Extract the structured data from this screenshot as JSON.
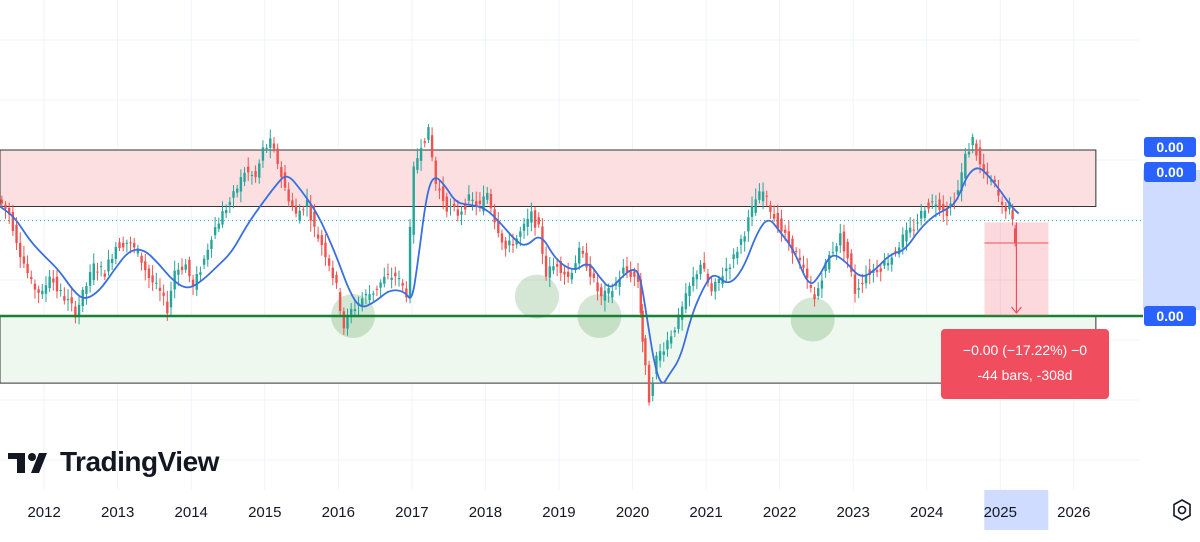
{
  "watermark": {
    "text": "TradingView"
  },
  "icons": {
    "logo": "tradingview-logo-icon",
    "settings": "settings-gear-icon"
  },
  "colors": {
    "resistance_zone": "#fbdfe1",
    "support_zone": "#eef8ee",
    "ma_line": "#3a6fe0",
    "up_candle": "#26a69a",
    "down_candle": "#ef5350",
    "support_line": "#1a7f37",
    "axis_highlight": "#cfdcff",
    "label_blue": "#2962ff",
    "measure": "#f04e5e"
  },
  "price_labels": [
    "0.00",
    "0.00",
    "0.00"
  ],
  "measure": {
    "line1": "−0.00 (−17.22%) −0",
    "line2": "-44 bars, -308d"
  },
  "chart_data": {
    "type": "line",
    "x_axis": {
      "ticks": [
        "2012",
        "2013",
        "2014",
        "2015",
        "2016",
        "2017",
        "2018",
        "2019",
        "2020",
        "2021",
        "2022",
        "2023",
        "2024",
        "2025",
        "2026"
      ],
      "highlighted_tick": "2025",
      "range": [
        2011.4,
        2026.9
      ]
    },
    "y_axis": {
      "labels": [
        "0.00",
        "0.00",
        "0.00"
      ],
      "scale": "unlabeled"
    },
    "grid": true,
    "series": [
      {
        "kind": "moving-average",
        "color": "#3a6fe0",
        "points": [
          [
            2011.4,
            0.62
          ],
          [
            2011.6,
            0.56
          ],
          [
            2011.8,
            0.43
          ],
          [
            2012.0,
            0.34
          ],
          [
            2012.2,
            0.26
          ],
          [
            2012.4,
            0.14
          ],
          [
            2012.55,
            0.09
          ],
          [
            2012.75,
            0.14
          ],
          [
            2012.95,
            0.26
          ],
          [
            2013.15,
            0.37
          ],
          [
            2013.35,
            0.38
          ],
          [
            2013.55,
            0.3
          ],
          [
            2013.75,
            0.2
          ],
          [
            2013.95,
            0.15
          ],
          [
            2014.15,
            0.2
          ],
          [
            2014.35,
            0.28
          ],
          [
            2014.55,
            0.36
          ],
          [
            2014.75,
            0.51
          ],
          [
            2014.95,
            0.63
          ],
          [
            2015.15,
            0.74
          ],
          [
            2015.3,
            0.81
          ],
          [
            2015.5,
            0.71
          ],
          [
            2015.7,
            0.59
          ],
          [
            2015.85,
            0.46
          ],
          [
            2016.0,
            0.31
          ],
          [
            2016.15,
            0.14
          ],
          [
            2016.3,
            0.04
          ],
          [
            2016.5,
            0.08
          ],
          [
            2016.7,
            0.15
          ],
          [
            2016.9,
            0.14
          ],
          [
            2017.0,
            0.08
          ],
          [
            2017.08,
            0.3
          ],
          [
            2017.2,
            0.69
          ],
          [
            2017.3,
            0.8
          ],
          [
            2017.45,
            0.74
          ],
          [
            2017.6,
            0.64
          ],
          [
            2017.8,
            0.63
          ],
          [
            2018.0,
            0.61
          ],
          [
            2018.2,
            0.53
          ],
          [
            2018.4,
            0.43
          ],
          [
            2018.55,
            0.39
          ],
          [
            2018.75,
            0.47
          ],
          [
            2018.95,
            0.32
          ],
          [
            2019.2,
            0.25
          ],
          [
            2019.4,
            0.31
          ],
          [
            2019.55,
            0.22
          ],
          [
            2019.7,
            0.15
          ],
          [
            2019.85,
            0.22
          ],
          [
            2020.0,
            0.27
          ],
          [
            2020.1,
            0.24
          ],
          [
            2020.2,
            -0.02
          ],
          [
            2020.3,
            -0.28
          ],
          [
            2020.4,
            -0.4
          ],
          [
            2020.5,
            -0.33
          ],
          [
            2020.65,
            -0.24
          ],
          [
            2020.8,
            0.0
          ],
          [
            2020.95,
            0.15
          ],
          [
            2021.1,
            0.25
          ],
          [
            2021.3,
            0.17
          ],
          [
            2021.5,
            0.26
          ],
          [
            2021.7,
            0.48
          ],
          [
            2021.85,
            0.56
          ],
          [
            2022.0,
            0.48
          ],
          [
            2022.2,
            0.37
          ],
          [
            2022.4,
            0.16
          ],
          [
            2022.55,
            0.23
          ],
          [
            2022.7,
            0.36
          ],
          [
            2022.9,
            0.31
          ],
          [
            2023.1,
            0.21
          ],
          [
            2023.3,
            0.26
          ],
          [
            2023.5,
            0.35
          ],
          [
            2023.7,
            0.37
          ],
          [
            2023.9,
            0.49
          ],
          [
            2024.1,
            0.57
          ],
          [
            2024.25,
            0.6
          ],
          [
            2024.4,
            0.64
          ],
          [
            2024.55,
            0.8
          ],
          [
            2024.7,
            0.85
          ],
          [
            2024.85,
            0.79
          ],
          [
            2025.0,
            0.71
          ],
          [
            2025.15,
            0.62
          ],
          [
            2025.25,
            0.58
          ]
        ]
      },
      {
        "kind": "price",
        "style": "candles",
        "points": [
          [
            2011.4,
            0.66
          ],
          [
            2011.55,
            0.58
          ],
          [
            2011.7,
            0.36
          ],
          [
            2011.85,
            0.18
          ],
          [
            2012.0,
            0.12
          ],
          [
            2012.1,
            0.24
          ],
          [
            2012.2,
            0.15
          ],
          [
            2012.35,
            0.08
          ],
          [
            2012.45,
            0.02
          ],
          [
            2012.55,
            0.12
          ],
          [
            2012.7,
            0.28
          ],
          [
            2012.85,
            0.25
          ],
          [
            2013.0,
            0.4
          ],
          [
            2013.15,
            0.42
          ],
          [
            2013.3,
            0.36
          ],
          [
            2013.45,
            0.22
          ],
          [
            2013.6,
            0.13
          ],
          [
            2013.7,
            0.04
          ],
          [
            2013.8,
            0.26
          ],
          [
            2013.95,
            0.29
          ],
          [
            2014.05,
            0.16
          ],
          [
            2014.2,
            0.32
          ],
          [
            2014.3,
            0.46
          ],
          [
            2014.45,
            0.58
          ],
          [
            2014.6,
            0.68
          ],
          [
            2014.75,
            0.82
          ],
          [
            2014.9,
            0.78
          ],
          [
            2015.0,
            0.94
          ],
          [
            2015.1,
            0.98
          ],
          [
            2015.2,
            0.87
          ],
          [
            2015.3,
            0.72
          ],
          [
            2015.45,
            0.57
          ],
          [
            2015.6,
            0.65
          ],
          [
            2015.7,
            0.49
          ],
          [
            2015.8,
            0.41
          ],
          [
            2015.9,
            0.3
          ],
          [
            2016.0,
            0.16
          ],
          [
            2016.1,
            -0.06
          ],
          [
            2016.2,
            0.03
          ],
          [
            2016.35,
            0.1
          ],
          [
            2016.5,
            0.14
          ],
          [
            2016.65,
            0.21
          ],
          [
            2016.8,
            0.23
          ],
          [
            2016.95,
            0.13
          ],
          [
            2017.05,
            0.82
          ],
          [
            2017.15,
            0.98
          ],
          [
            2017.25,
            1.04
          ],
          [
            2017.35,
            0.75
          ],
          [
            2017.5,
            0.62
          ],
          [
            2017.65,
            0.58
          ],
          [
            2017.8,
            0.66
          ],
          [
            2017.95,
            0.62
          ],
          [
            2018.05,
            0.7
          ],
          [
            2018.15,
            0.55
          ],
          [
            2018.3,
            0.38
          ],
          [
            2018.45,
            0.44
          ],
          [
            2018.55,
            0.5
          ],
          [
            2018.65,
            0.57
          ],
          [
            2018.75,
            0.49
          ],
          [
            2018.85,
            0.24
          ],
          [
            2019.0,
            0.3
          ],
          [
            2019.15,
            0.22
          ],
          [
            2019.3,
            0.36
          ],
          [
            2019.4,
            0.3
          ],
          [
            2019.5,
            0.19
          ],
          [
            2019.6,
            0.1
          ],
          [
            2019.75,
            0.15
          ],
          [
            2019.9,
            0.26
          ],
          [
            2020.0,
            0.24
          ],
          [
            2020.1,
            0.2
          ],
          [
            2020.15,
            -0.14
          ],
          [
            2020.25,
            -0.47
          ],
          [
            2020.35,
            -0.24
          ],
          [
            2020.5,
            -0.14
          ],
          [
            2020.65,
            -0.02
          ],
          [
            2020.8,
            0.16
          ],
          [
            2020.95,
            0.3
          ],
          [
            2021.1,
            0.13
          ],
          [
            2021.25,
            0.24
          ],
          [
            2021.4,
            0.33
          ],
          [
            2021.55,
            0.48
          ],
          [
            2021.7,
            0.66
          ],
          [
            2021.8,
            0.7
          ],
          [
            2021.95,
            0.56
          ],
          [
            2022.1,
            0.45
          ],
          [
            2022.25,
            0.35
          ],
          [
            2022.4,
            0.2
          ],
          [
            2022.5,
            0.09
          ],
          [
            2022.6,
            0.23
          ],
          [
            2022.7,
            0.34
          ],
          [
            2022.85,
            0.45
          ],
          [
            2022.95,
            0.33
          ],
          [
            2023.05,
            0.14
          ],
          [
            2023.2,
            0.24
          ],
          [
            2023.4,
            0.28
          ],
          [
            2023.55,
            0.34
          ],
          [
            2023.7,
            0.44
          ],
          [
            2023.85,
            0.5
          ],
          [
            2024.0,
            0.62
          ],
          [
            2024.15,
            0.65
          ],
          [
            2024.3,
            0.59
          ],
          [
            2024.45,
            0.71
          ],
          [
            2024.55,
            0.9
          ],
          [
            2024.65,
            1.0
          ],
          [
            2024.75,
            0.85
          ],
          [
            2024.85,
            0.78
          ],
          [
            2024.95,
            0.74
          ],
          [
            2025.05,
            0.61
          ],
          [
            2025.15,
            0.62
          ],
          [
            2025.22,
            0.43
          ]
        ]
      }
    ],
    "zones": [
      {
        "name": "resistance",
        "x_range": [
          2011.4,
          2026.3
        ],
        "y_range": [
          0.62,
          0.94
        ]
      },
      {
        "name": "support",
        "x_range": [
          2011.4,
          2026.3
        ],
        "y_range": [
          -0.38,
          0.0
        ]
      }
    ],
    "support_level": 0.0,
    "dotted_level": 0.54,
    "annotations": [
      {
        "type": "circle",
        "x": 2016.2,
        "y": 0.0
      },
      {
        "type": "circle",
        "x": 2018.7,
        "y": 0.11
      },
      {
        "type": "circle",
        "x": 2019.55,
        "y": 0.0
      },
      {
        "type": "circle",
        "x": 2022.45,
        "y": -0.02
      },
      {
        "type": "measure",
        "x_from": 2025.22,
        "x_to": 2025.22,
        "y_from": 0.53,
        "y_to": 0.0,
        "text": "−0.00 (−17.22%) −0 / -44 bars, -308d"
      }
    ]
  }
}
